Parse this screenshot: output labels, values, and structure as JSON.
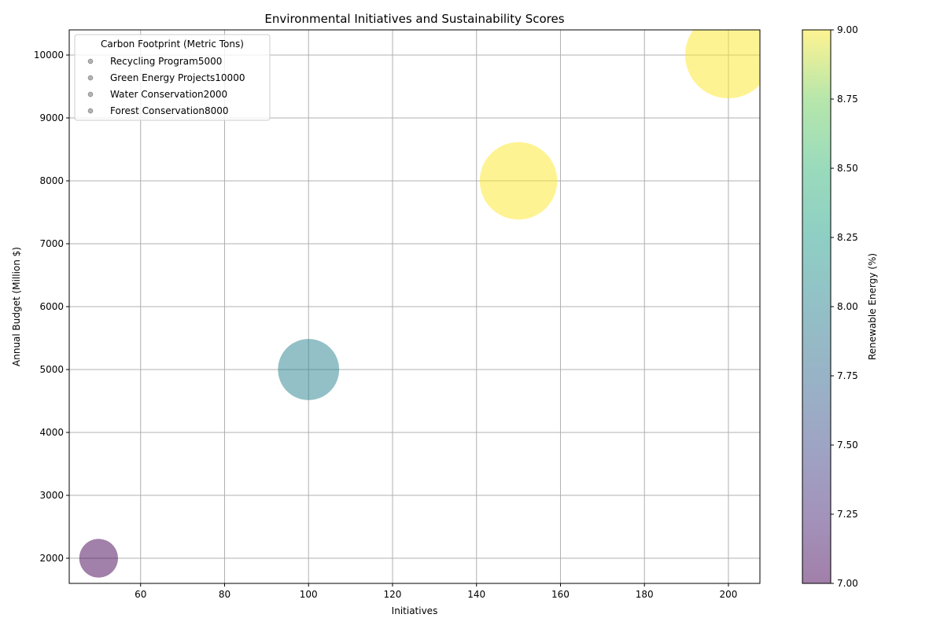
{
  "chart_data": {
    "type": "scatter",
    "title": "Environmental Initiatives and Sustainability Scores",
    "xlabel": "Initiatives",
    "ylabel": "Annual Budget (Million $)",
    "xlim": [
      43,
      207.5
    ],
    "ylim": [
      1600,
      10400
    ],
    "xticks": [
      60,
      80,
      100,
      120,
      140,
      160,
      180,
      200
    ],
    "yticks": [
      2000,
      3000,
      4000,
      5000,
      6000,
      7000,
      8000,
      9000,
      10000
    ],
    "grid": true,
    "points": [
      {
        "x": 50,
        "y": 2000,
        "size": 2000,
        "color_value": 7
      },
      {
        "x": 100,
        "y": 5000,
        "size": 5000,
        "color_value": 8
      },
      {
        "x": 150,
        "y": 8000,
        "size": 8000,
        "color_value": 9
      },
      {
        "x": 200,
        "y": 10000,
        "size": 10000,
        "color_value": 9
      }
    ],
    "legend": {
      "title": "Carbon Footprint (Metric Tons)",
      "placement": "upper-left",
      "entries": [
        "Recycling Program5000",
        "Green Energy Projects10000",
        "Water Conservation2000",
        "Forest Conservation8000"
      ]
    },
    "colorbar": {
      "label": "Renewable Energy (%)",
      "min": 7.0,
      "max": 9.0,
      "ticks": [
        "7.00",
        "7.25",
        "7.50",
        "7.75",
        "8.00",
        "8.25",
        "8.50",
        "8.75",
        "9.00"
      ],
      "colormap": "viridis"
    }
  }
}
